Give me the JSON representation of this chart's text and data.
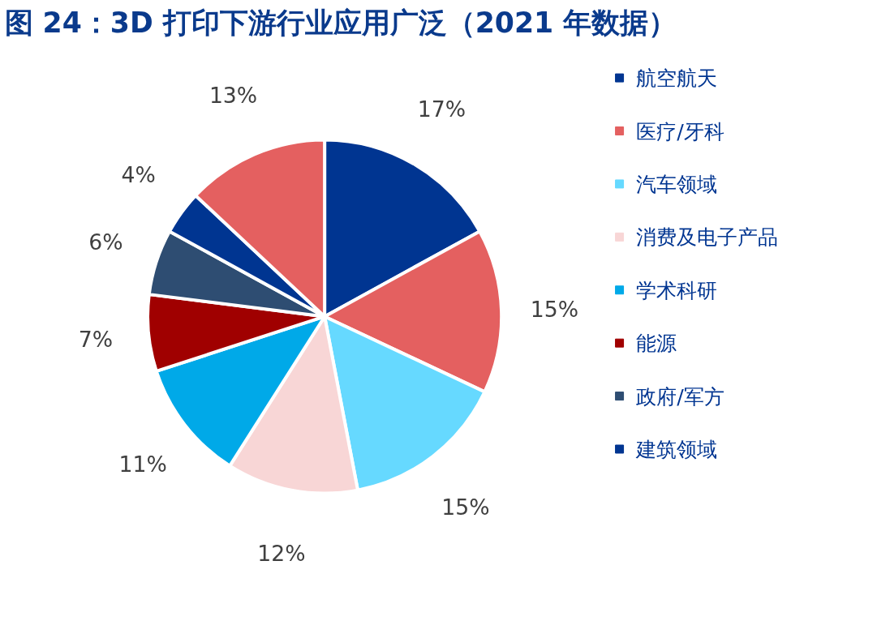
{
  "chart_data": {
    "type": "pie",
    "title": "图 24：3D 打印下游行业应用广泛（2021 年数据）",
    "categories": [
      "航空航天",
      "医疗/牙科",
      "汽车领域",
      "消费及电子产品",
      "学术科研",
      "能源",
      "政府/军方",
      "建筑领域",
      null
    ],
    "values": [
      17,
      15,
      15,
      12,
      11,
      7,
      6,
      4,
      13
    ],
    "colors": [
      "#003591",
      "#e46060",
      "#66d9ff",
      "#f8d6d6",
      "#00a9e8",
      "#a00000",
      "#2e4d72",
      "#003591",
      "#e46060"
    ],
    "value_labels": [
      "17%",
      "15%",
      "15%",
      "12%",
      "11%",
      "7%",
      "6%",
      "4%",
      "13%"
    ],
    "legend": "top right"
  }
}
